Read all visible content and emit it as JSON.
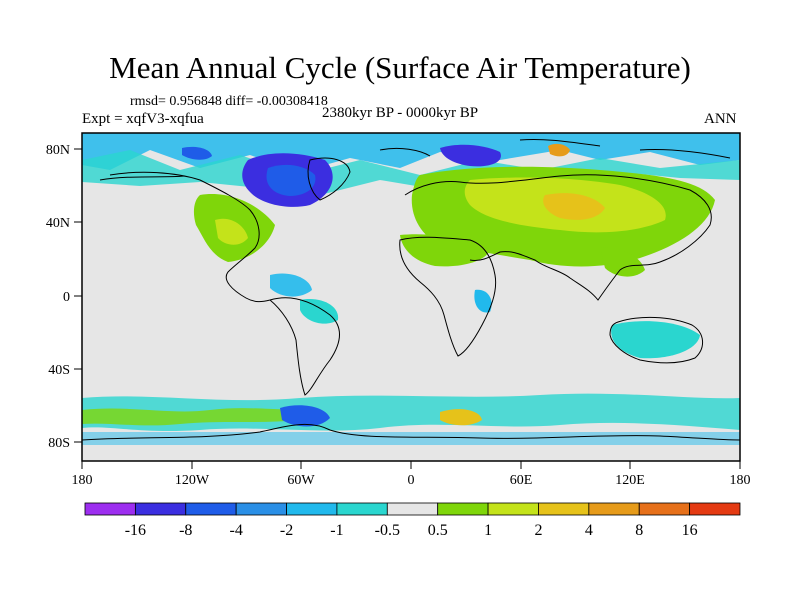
{
  "title": "Mean Annual Cycle (Surface Air Temperature)",
  "stats": "rmsd= 0.956848 diff= -0.00308418",
  "experiment": "Expt = xqfV3-xqfua",
  "period": "2380kyr BP - 0000kyr BP",
  "season": "ANN",
  "lat_ticks": [
    "80N",
    "40N",
    "0",
    "40S",
    "80S"
  ],
  "lon_ticks": [
    "180",
    "120W",
    "60W",
    "0",
    "60E",
    "120E",
    "180"
  ],
  "legend": {
    "labels": [
      "-16",
      "-8",
      "-4",
      "-2",
      "-1",
      "-0.5",
      "0.5",
      "1",
      "2",
      "4",
      "8",
      "16"
    ],
    "colors": [
      "#9d2ef0",
      "#3b2ee0",
      "#1f5ce8",
      "#2a8fe6",
      "#21b9ec",
      "#2ad6cf",
      "#e6e6e6",
      "#7fd60a",
      "#c4e31a",
      "#e6c21a",
      "#e69b1a",
      "#e6701a",
      "#e43a12"
    ]
  },
  "colors": {
    "background_neutral": "#e6e6e6",
    "coastline": "#000000"
  }
}
